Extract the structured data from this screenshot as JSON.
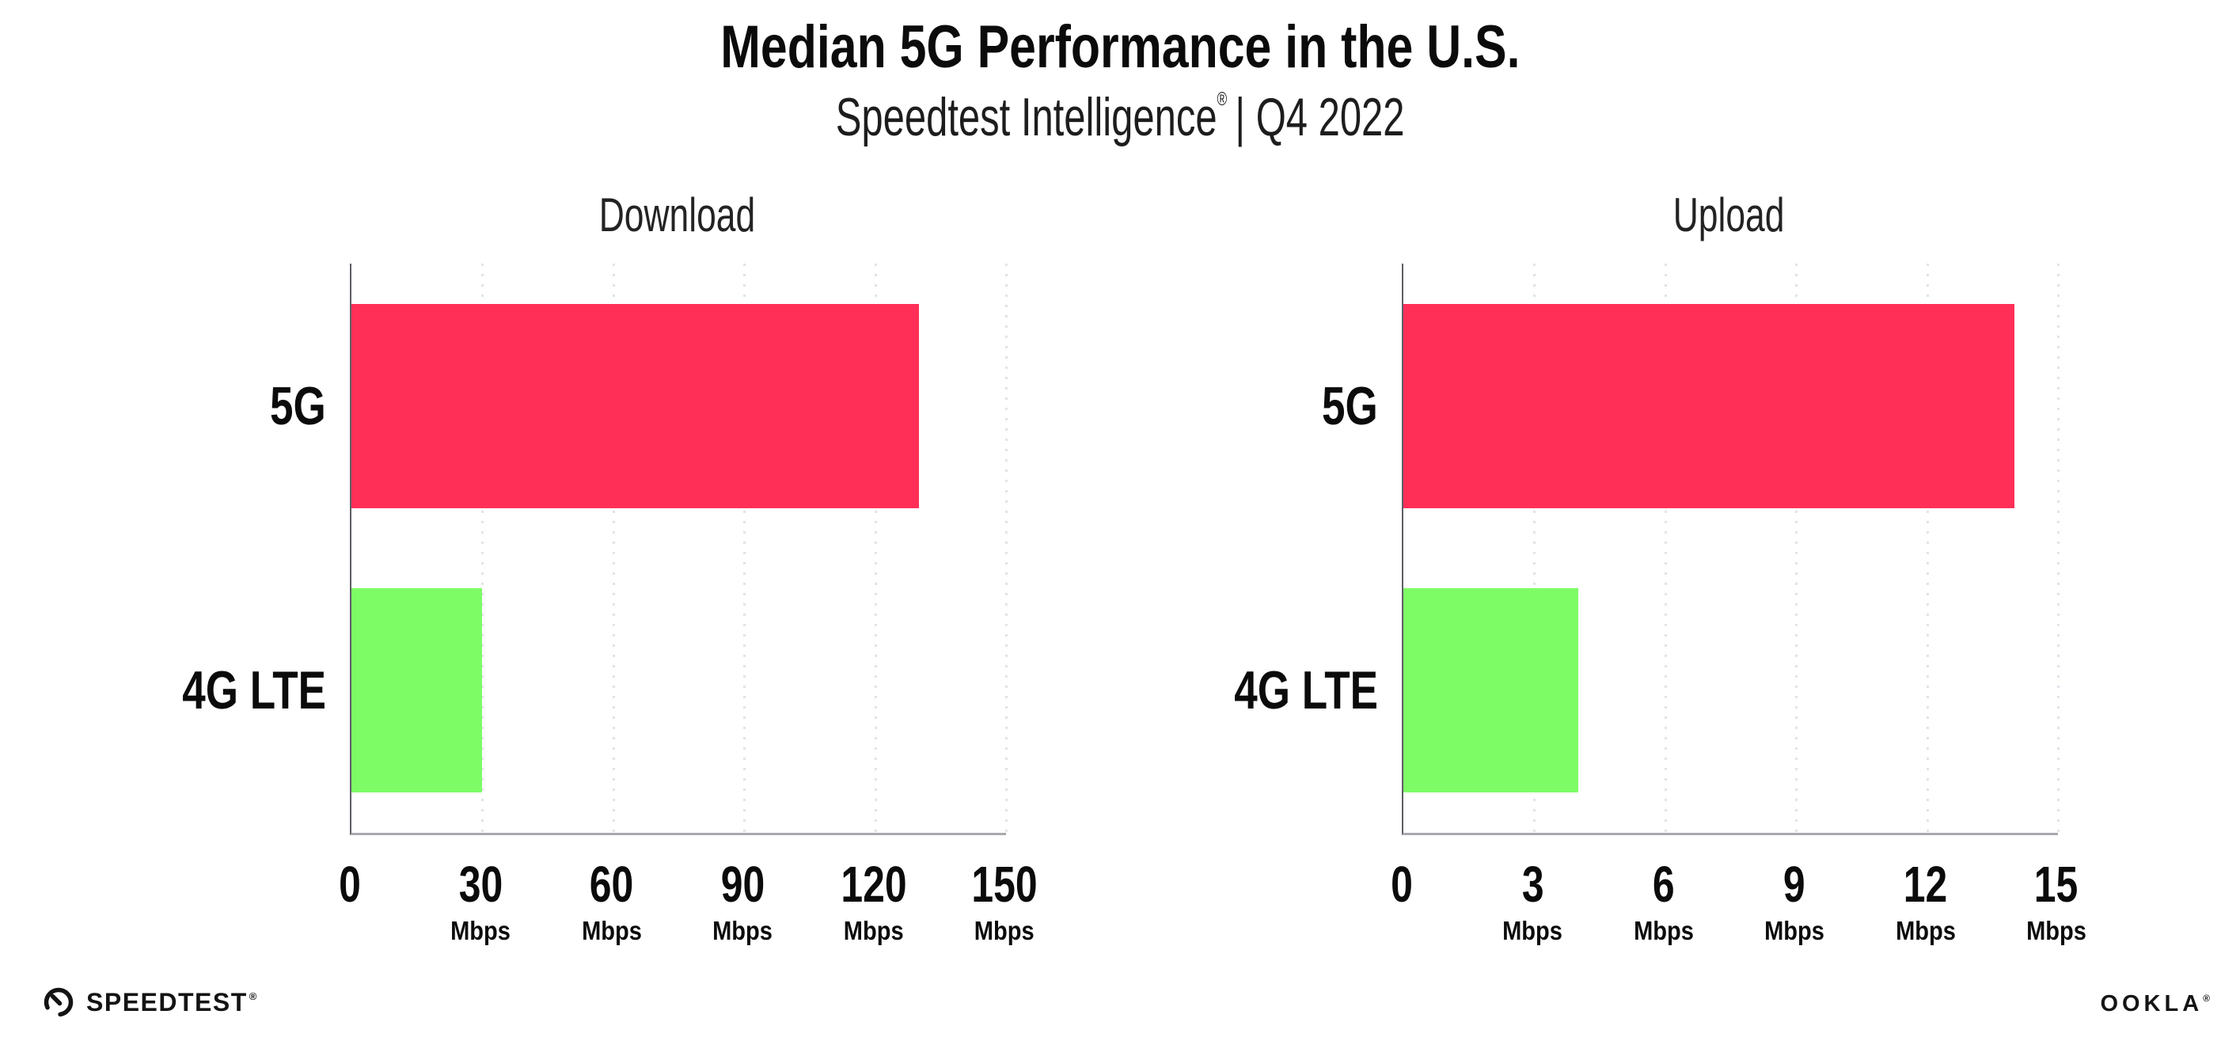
{
  "header": {
    "title": "Median 5G Performance in the U.S.",
    "subtitle_brand": "Speedtest Intelligence",
    "subtitle_reg": "®",
    "subtitle_rest": "| Q4 2022"
  },
  "chart_data": [
    {
      "type": "bar",
      "orientation": "horizontal",
      "title": "Download",
      "categories": [
        "5G",
        "4G LTE"
      ],
      "values": [
        130,
        30
      ],
      "unit": "Mbps",
      "xlim": [
        0,
        150
      ],
      "xticks": [
        0,
        30,
        60,
        90,
        120,
        150
      ],
      "bar_colors": [
        "#FF2F58",
        "#7EFC66"
      ],
      "grid": "vertical-dotted",
      "legend": "none",
      "value_labels": "none"
    },
    {
      "type": "bar",
      "orientation": "horizontal",
      "title": "Upload",
      "categories": [
        "5G",
        "4G LTE"
      ],
      "values": [
        14,
        4
      ],
      "unit": "Mbps",
      "xlim": [
        0,
        15
      ],
      "xticks": [
        0,
        3,
        6,
        9,
        12,
        15
      ],
      "bar_colors": [
        "#FF2F58",
        "#7EFC66"
      ],
      "grid": "vertical-dotted",
      "legend": "none",
      "value_labels": "none"
    }
  ],
  "footer": {
    "speedtest_label": "SPEEDTEST",
    "speedtest_reg": "®",
    "ookla_label": "OOKLA",
    "ookla_reg": "®"
  },
  "colors": {
    "bar_5g": "#FF2F58",
    "bar_4g_lte": "#7EFC66",
    "axis_y": "#5E5E66",
    "axis_x": "#A9A9AE",
    "gridline": "#E2E2EC",
    "text": "#0B0B0B",
    "background": "#FFFFFF"
  }
}
